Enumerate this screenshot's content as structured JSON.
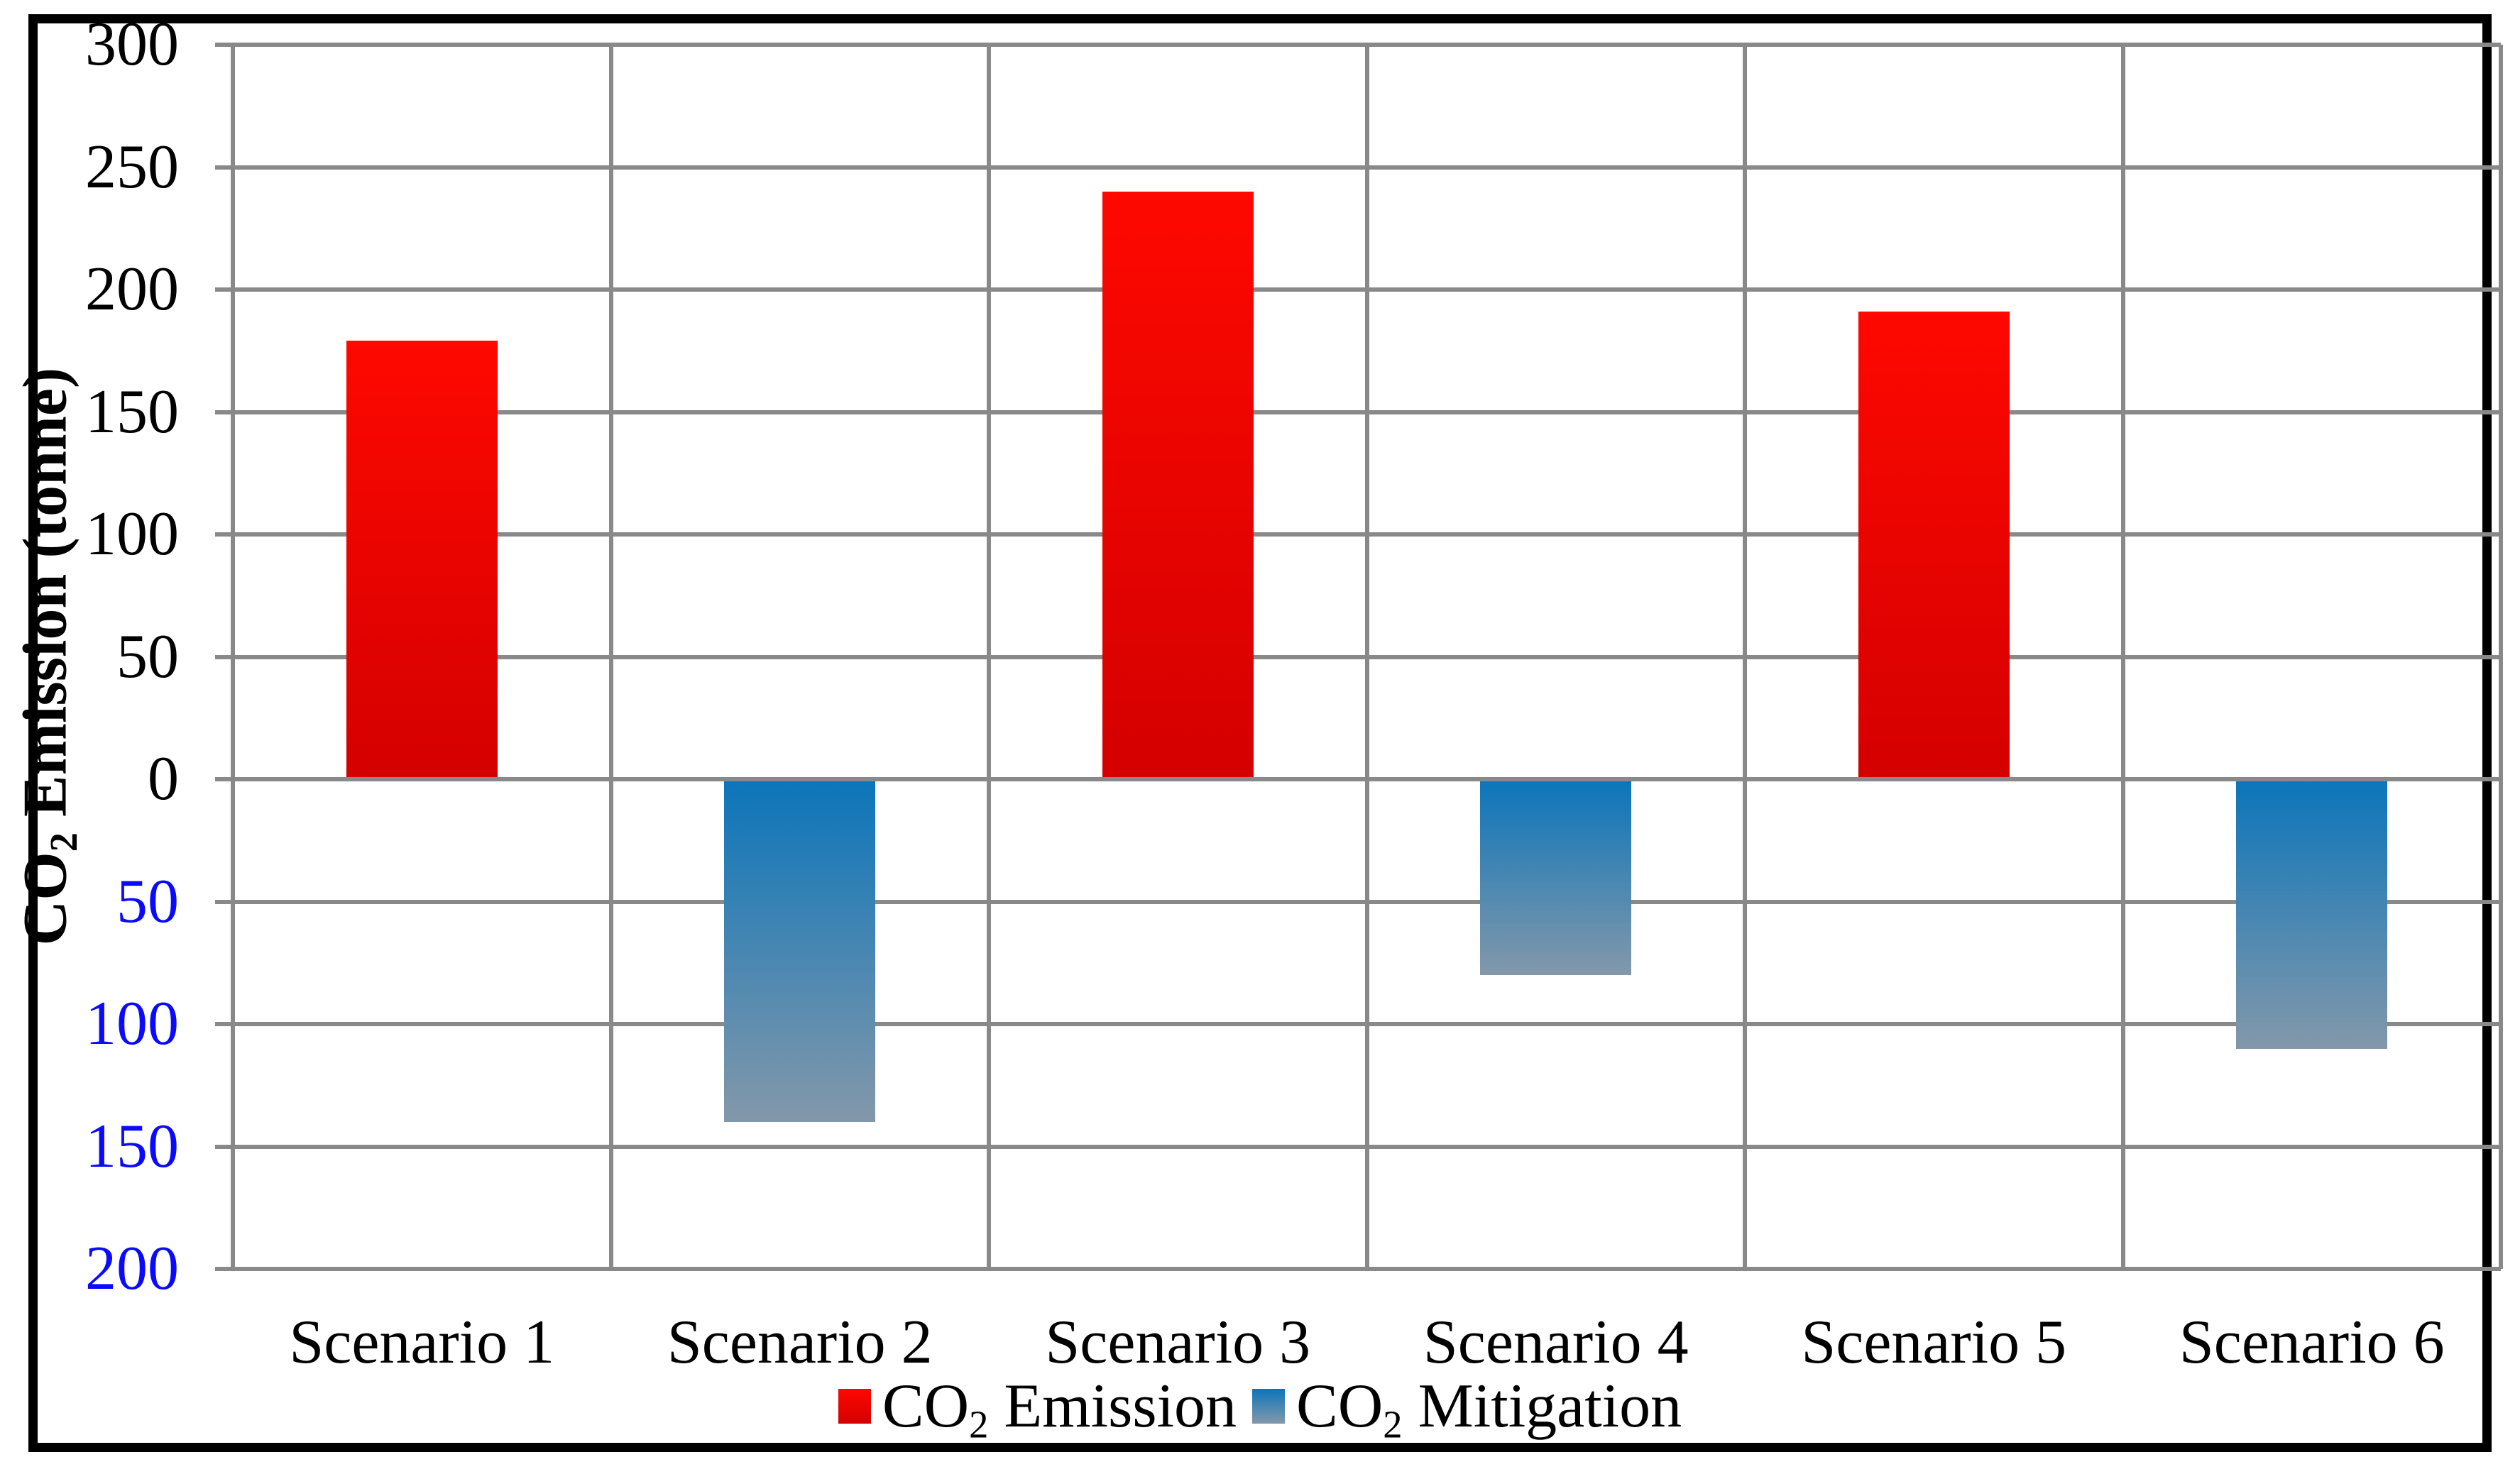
{
  "chart_data": {
    "type": "bar",
    "title": "",
    "categories": [
      "Scenario 1",
      "Scenario 2",
      "Scenario 3",
      "Scenario 4",
      "Scenario 5",
      "Scenario 6"
    ],
    "series": [
      {
        "name": "CO2 Emission",
        "legend": {
          "pre": "CO",
          "sub": "2",
          "post": " Emission"
        },
        "values": [
          179,
          null,
          240,
          null,
          191,
          null
        ],
        "color_top": "#fe0800",
        "color_bottom": "#d40000"
      },
      {
        "name": "CO2 Mitigation",
        "legend": {
          "pre": "CO",
          "sub": "2",
          "post": " Mitigation"
        },
        "values": [
          null,
          -140,
          null,
          -80,
          null,
          -110
        ],
        "color_top": "#0c75ba",
        "color_bottom": "#8398aa"
      }
    ],
    "ylabel": {
      "pre": "CO",
      "sub": "2",
      "post": " Emission (tonne)"
    },
    "ylim": [
      -200,
      300
    ],
    "y_major_unit": 50,
    "grid": true,
    "legend_position": "bottom",
    "yticks": [
      {
        "label": "300",
        "value": 300,
        "color": "#000000"
      },
      {
        "label": "250",
        "value": 250,
        "color": "#000000"
      },
      {
        "label": "200",
        "value": 200,
        "color": "#000000"
      },
      {
        "label": "150",
        "value": 150,
        "color": "#000000"
      },
      {
        "label": "100",
        "value": 100,
        "color": "#000000"
      },
      {
        "label": "50",
        "value": 50,
        "color": "#000000"
      },
      {
        "label": "0",
        "value": 0,
        "color": "#000000"
      },
      {
        "label": "50",
        "value": -50,
        "color": "#0a0aff"
      },
      {
        "label": "100",
        "value": -100,
        "color": "#0a0aff"
      },
      {
        "label": "150",
        "value": -150,
        "color": "#0a0aff"
      },
      {
        "label": "200",
        "value": -200,
        "color": "#0a0aff"
      }
    ]
  },
  "colors": {
    "gridline": "#898989",
    "border": "#000000",
    "background": "#ffffff"
  }
}
